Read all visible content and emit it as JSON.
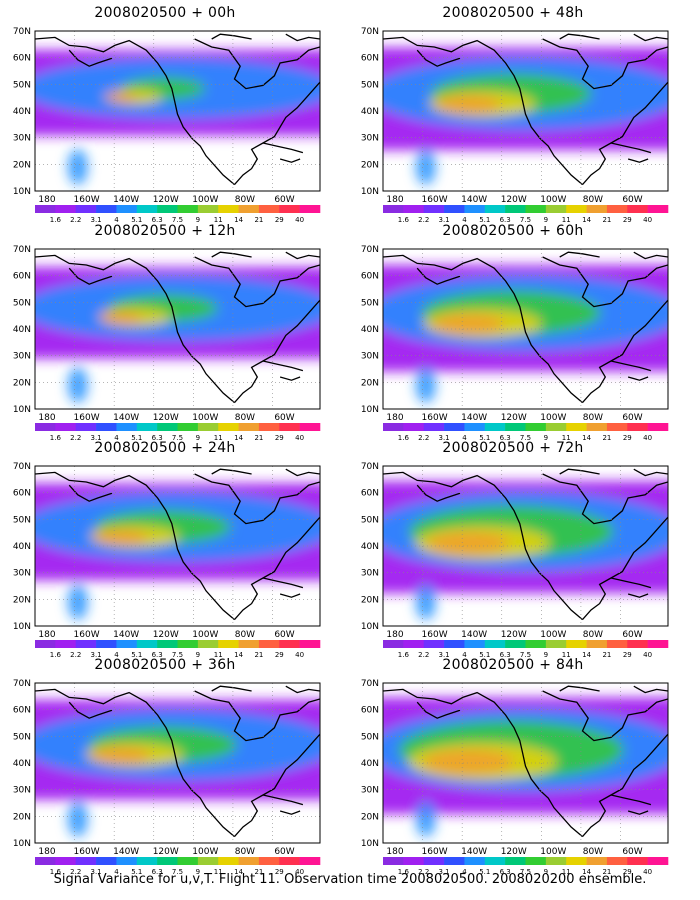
{
  "footer": "Signal Variance for u,v,T. Flight 11. Observation time 2008020500. 2008020200 ensemble.",
  "lat_labels": [
    "70N",
    "60N",
    "50N",
    "40N",
    "30N",
    "20N",
    "10N"
  ],
  "lon_labels": [
    "180",
    "160W",
    "140W",
    "120W",
    "100W",
    "80W",
    "60W"
  ],
  "scale_values": [
    "1.6",
    "2.2",
    "3.1",
    "4",
    "5.1",
    "6.3",
    "7.5",
    "9",
    "11",
    "14",
    "21",
    "29",
    "40"
  ],
  "scale_colors": [
    "#8a2be2",
    "#a020f0",
    "#7030ff",
    "#3050ff",
    "#1e90ff",
    "#00c8c8",
    "#00c878",
    "#32cd32",
    "#9acd32",
    "#e6d200",
    "#f0a030",
    "#ff6040",
    "#ff3050",
    "#ff1493"
  ],
  "panels": [
    {
      "title": "2008020500 + 00h",
      "intensity": 0.25
    },
    {
      "title": "2008020500 + 48h",
      "intensity": 0.55
    },
    {
      "title": "2008020500 + 12h",
      "intensity": 0.35
    },
    {
      "title": "2008020500 + 60h",
      "intensity": 0.62
    },
    {
      "title": "2008020500 + 24h",
      "intensity": 0.45
    },
    {
      "title": "2008020500 + 72h",
      "intensity": 0.72
    },
    {
      "title": "2008020500 + 36h",
      "intensity": 0.5
    },
    {
      "title": "2008020500 + 84h",
      "intensity": 0.8
    }
  ]
}
